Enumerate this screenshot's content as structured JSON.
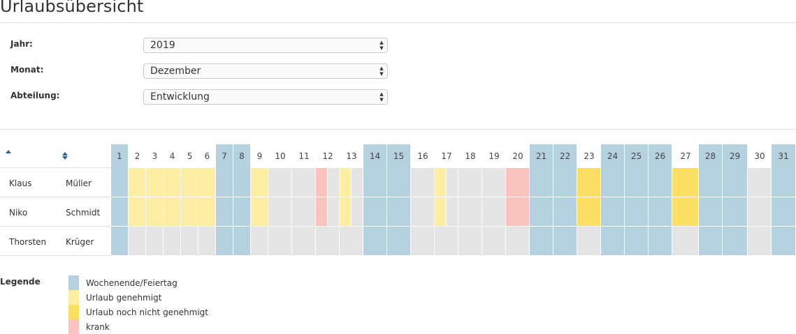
{
  "page": {
    "title": "Urlaubsübersicht"
  },
  "filters": {
    "year": {
      "label": "Jahr:",
      "value": "2019"
    },
    "month": {
      "label": "Monat:",
      "value": "Dezember"
    },
    "department": {
      "label": "Abteilung:",
      "value": "Entwicklung"
    }
  },
  "colors": {
    "weekend": "#b5d1df",
    "empty": "#e4e4e4",
    "approved": "#fdeea3",
    "pending": "#fddf63",
    "sick": "#fac3bd"
  },
  "calendar": {
    "days": [
      1,
      2,
      3,
      4,
      5,
      6,
      7,
      8,
      9,
      10,
      11,
      12,
      13,
      14,
      15,
      16,
      17,
      18,
      19,
      20,
      21,
      22,
      23,
      24,
      25,
      26,
      27,
      28,
      29,
      30,
      31
    ],
    "weekend_days": [
      1,
      7,
      8,
      14,
      15,
      21,
      22,
      24,
      25,
      26,
      28,
      29,
      31
    ],
    "employees": [
      {
        "first_name": "Klaus",
        "last_name": "Müller",
        "entries": [
          {
            "day": 2,
            "status": "approved"
          },
          {
            "day": 3,
            "status": "approved"
          },
          {
            "day": 4,
            "status": "approved"
          },
          {
            "day": 5,
            "status": "approved"
          },
          {
            "day": 6,
            "status": "approved"
          },
          {
            "day": 9,
            "status": "approved"
          },
          {
            "day": 12,
            "status": "sick",
            "half": "first"
          },
          {
            "day": 13,
            "status": "approved",
            "half": "first"
          },
          {
            "day": 17,
            "status": "approved",
            "half": "first"
          },
          {
            "day": 20,
            "status": "sick"
          },
          {
            "day": 23,
            "status": "pending"
          },
          {
            "day": 27,
            "status": "pending"
          }
        ]
      },
      {
        "first_name": "Niko",
        "last_name": "Schmidt",
        "entries": [
          {
            "day": 2,
            "status": "approved"
          },
          {
            "day": 3,
            "status": "approved"
          },
          {
            "day": 4,
            "status": "approved"
          },
          {
            "day": 5,
            "status": "approved"
          },
          {
            "day": 6,
            "status": "approved"
          },
          {
            "day": 9,
            "status": "approved"
          },
          {
            "day": 12,
            "status": "sick",
            "half": "first"
          },
          {
            "day": 13,
            "status": "approved",
            "half": "first"
          },
          {
            "day": 17,
            "status": "approved",
            "half": "first"
          },
          {
            "day": 20,
            "status": "sick"
          },
          {
            "day": 23,
            "status": "pending"
          },
          {
            "day": 27,
            "status": "pending"
          }
        ]
      },
      {
        "first_name": "Thorsten",
        "last_name": "Krüger",
        "entries": []
      }
    ]
  },
  "legend": {
    "title": "Legende",
    "items": [
      {
        "label": "Wochenende/Feiertag",
        "status": "weekend"
      },
      {
        "label": "Urlaub genehmigt",
        "status": "approved"
      },
      {
        "label": "Urlaub noch nicht genehmigt",
        "status": "pending"
      },
      {
        "label": "krank",
        "status": "sick"
      }
    ]
  }
}
